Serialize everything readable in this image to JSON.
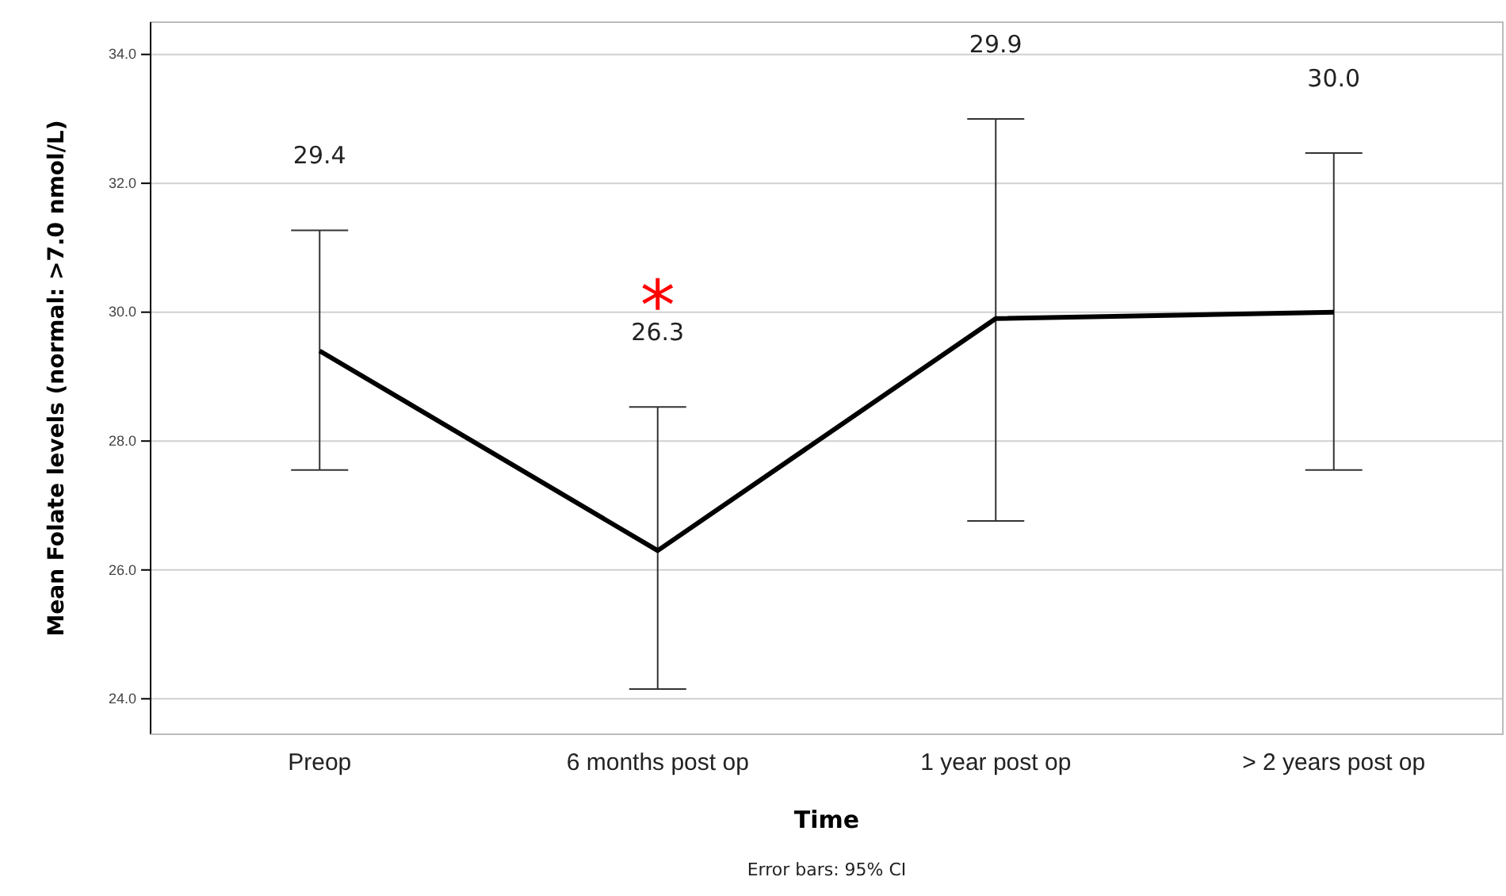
{
  "chart_data": {
    "type": "line",
    "xlabel": "Time",
    "ylabel": "Mean Folate levels (normal: >7.0 nmol/L)",
    "categories": [
      "Preop",
      "6 months post op",
      "1 year post op",
      "> 2 years post op"
    ],
    "series": [
      {
        "color": "#000000",
        "values": [
          29.4,
          26.3,
          29.9,
          30.0
        ],
        "errors": [
          [
            27.55,
            31.27
          ],
          [
            24.15,
            28.53
          ],
          [
            26.76,
            33.0
          ],
          [
            27.55,
            32.47
          ]
        ]
      }
    ],
    "ylim": [
      23.45,
      34.5
    ],
    "yticks": [
      {
        "value": 24,
        "label": "24.0"
      },
      {
        "value": 26,
        "label": "26.0"
      },
      {
        "value": 28,
        "label": "28.0"
      },
      {
        "value": 30,
        "label": "30.0"
      },
      {
        "value": 32,
        "label": "32.0"
      },
      {
        "value": 34,
        "label": "34.0"
      }
    ],
    "grid": "y",
    "marker": "none",
    "line_style": "solid",
    "annotations": [
      {
        "text": "29.4",
        "x": "Preop",
        "y": 31.27
      },
      {
        "text": "26.3",
        "x": "6 months post op",
        "y": 28.53
      },
      {
        "text": "29.9",
        "x": "1 year post op",
        "y": 33.0
      },
      {
        "text": "30.0",
        "x": "> 2 years post op",
        "y": 32.47
      },
      "*",
      "Error bars: 95% CI"
    ]
  }
}
